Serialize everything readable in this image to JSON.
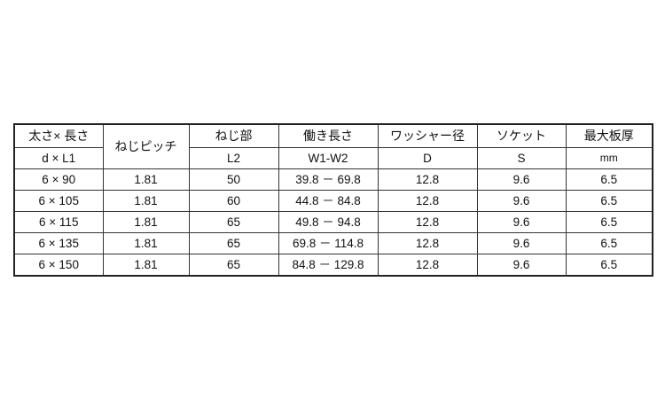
{
  "table": {
    "header_row1": [
      "太さ× 長さ",
      "ねじピッチ",
      "ねじ部",
      "働き長さ",
      "ワッシャー径",
      "ソケット",
      "最大板厚"
    ],
    "header_row2": [
      "d × L1",
      "L2",
      "W1-W2",
      "D",
      "S",
      "mm"
    ],
    "rows": [
      [
        "6 × 90",
        "1.81",
        "50",
        "39.8 － 69.8",
        "12.8",
        "9.6",
        "6.5"
      ],
      [
        "6 × 105",
        "1.81",
        "60",
        "44.8 － 84.8",
        "12.8",
        "9.6",
        "6.5"
      ],
      [
        "6 × 115",
        "1.81",
        "65",
        "49.8 － 94.8",
        "12.8",
        "9.6",
        "6.5"
      ],
      [
        "6 × 135",
        "1.81",
        "65",
        "69.8 － 114.8",
        "12.8",
        "9.6",
        "6.5"
      ],
      [
        "6 × 150",
        "1.81",
        "65",
        "84.8 － 129.8",
        "12.8",
        "9.6",
        "6.5"
      ]
    ]
  }
}
